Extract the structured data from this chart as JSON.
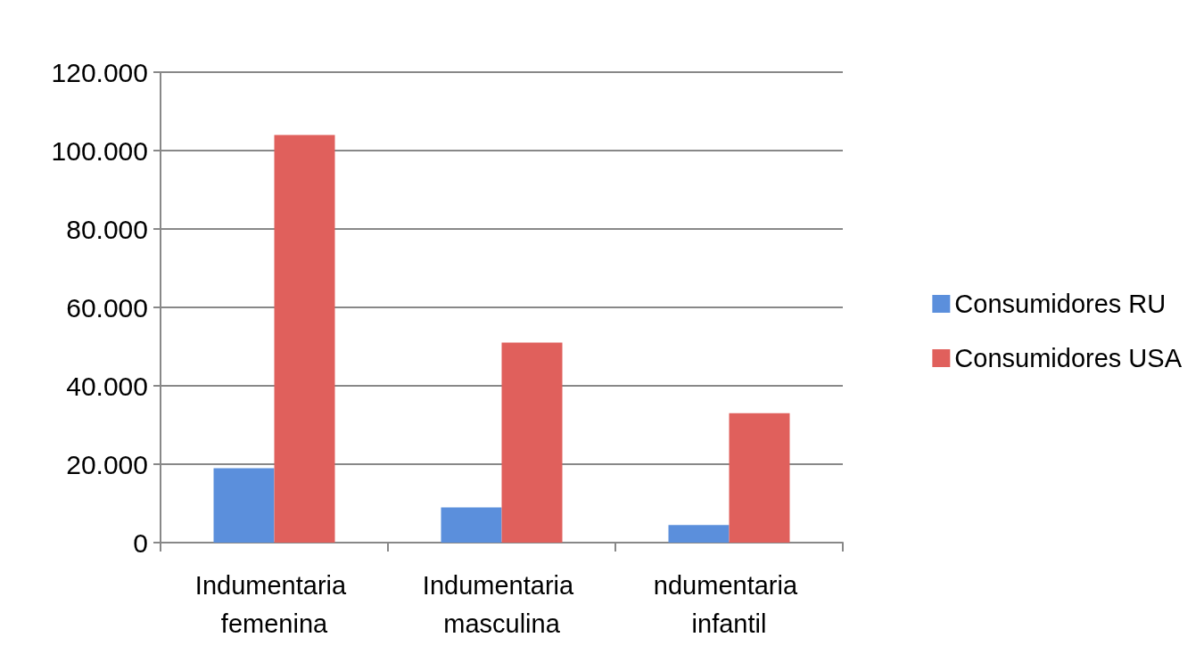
{
  "chart_data": {
    "type": "bar",
    "categories": [
      "Indumentaria femenina",
      "Indumentaria masculina",
      "ndumentaria infantil"
    ],
    "series": [
      {
        "name": "Consumidores RU",
        "color": "#5b8fdc",
        "values": [
          19000,
          9000,
          4500
        ]
      },
      {
        "name": "Consumidores USA",
        "color": "#e0605c",
        "values": [
          104000,
          51000,
          33000
        ]
      }
    ],
    "ylim": [
      0,
      120000
    ],
    "yticks": [
      0,
      {
        "value": 20000,
        "label": "20.000"
      },
      {
        "value": 40000,
        "label": "40.000"
      },
      {
        "value": 60000,
        "label": "60.000"
      },
      {
        "value": 80000,
        "label": "80.000"
      },
      {
        "value": 100000,
        "label": "100.000"
      },
      {
        "value": 120000,
        "label": "120.000"
      }
    ],
    "grid": "y",
    "legend": "right"
  }
}
